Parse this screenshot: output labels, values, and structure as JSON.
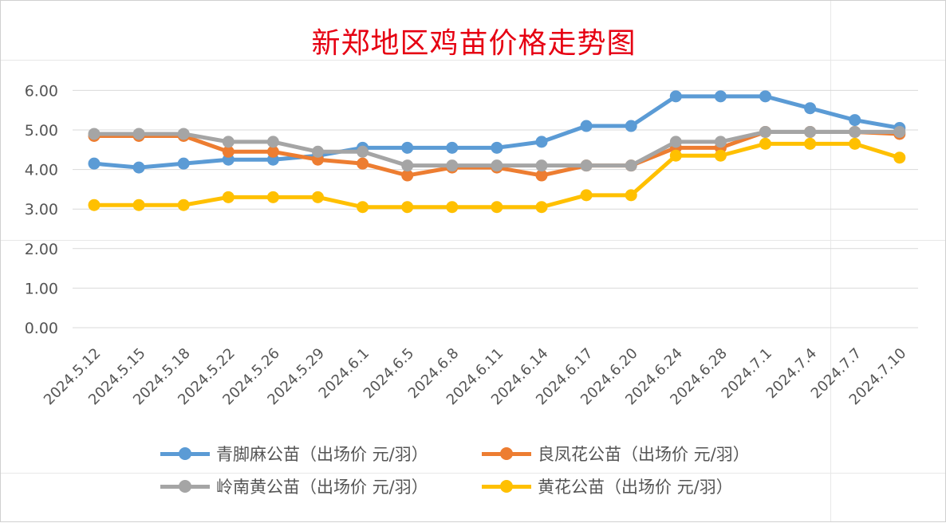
{
  "chart_data": {
    "type": "line",
    "title": "新郑地区鸡苗价格走势图",
    "xlabel": "",
    "ylabel": "",
    "ylim": [
      0,
      6
    ],
    "yticks": [
      "0.00",
      "1.00",
      "2.00",
      "3.00",
      "4.00",
      "5.00",
      "6.00"
    ],
    "grid": true,
    "legend_position": "bottom",
    "categories": [
      "2024.5.12",
      "2024.5.15",
      "2024.5.18",
      "2024.5.22",
      "2024.5.26",
      "2024.5.29",
      "2024.6.1",
      "2024.6.5",
      "2024.6.8",
      "2024.6.11",
      "2024.6.14",
      "2024.6.17",
      "2024.6.20",
      "2024.6.24",
      "2024.6.28",
      "2024.7.1",
      "2024.7.4",
      "2024.7.7",
      "2024.7.10"
    ],
    "series": [
      {
        "name": "青脚麻公苗（出场价 元/羽）",
        "color": "#5b9bd5",
        "values": [
          4.15,
          4.05,
          4.15,
          4.25,
          4.25,
          4.35,
          4.55,
          4.55,
          4.55,
          4.55,
          4.7,
          5.1,
          5.1,
          5.85,
          5.85,
          5.85,
          5.55,
          5.25,
          5.05
        ]
      },
      {
        "name": "良凤花公苗（出场价 元/羽）",
        "color": "#ed7d31",
        "values": [
          4.85,
          4.85,
          4.85,
          4.45,
          4.45,
          4.25,
          4.15,
          3.85,
          4.05,
          4.05,
          3.85,
          4.1,
          4.1,
          4.55,
          4.55,
          4.95,
          4.95,
          4.95,
          4.9
        ]
      },
      {
        "name": "岭南黄公苗（出场价 元/羽）",
        "color": "#a5a5a5",
        "values": [
          4.9,
          4.9,
          4.9,
          4.7,
          4.7,
          4.45,
          4.45,
          4.1,
          4.1,
          4.1,
          4.1,
          4.1,
          4.1,
          4.7,
          4.7,
          4.95,
          4.95,
          4.95,
          4.95
        ]
      },
      {
        "name": "黄花公苗（出场价 元/羽）",
        "color": "#ffc000",
        "values": [
          3.1,
          3.1,
          3.1,
          3.3,
          3.3,
          3.3,
          3.05,
          3.05,
          3.05,
          3.05,
          3.05,
          3.35,
          3.35,
          4.35,
          4.35,
          4.65,
          4.65,
          4.65,
          4.3
        ]
      }
    ]
  }
}
